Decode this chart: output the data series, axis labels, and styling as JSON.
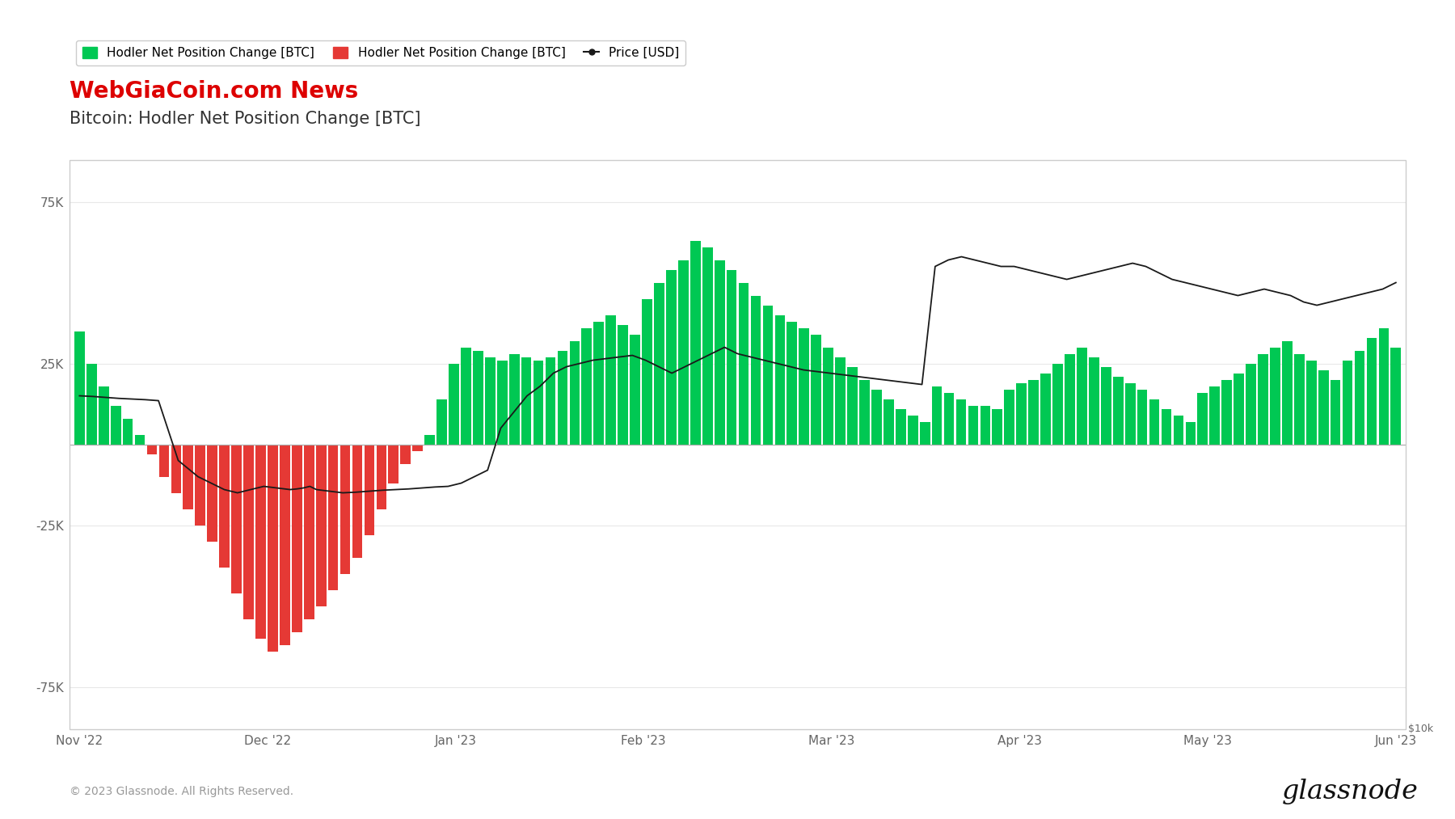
{
  "title": "Bitcoin: Hodler Net Position Change [BTC]",
  "watermark": "WebGiaCoin.com News",
  "footer_left": "© 2023 Glassnode. All Rights Reserved.",
  "footer_right": "glassnode",
  "yticks": [
    -75000,
    -25000,
    0,
    25000,
    75000
  ],
  "ytick_labels": [
    "-75K",
    "-25K",
    "",
    "25K",
    "75K"
  ],
  "ylabel_right": "$10k",
  "xtick_labels": [
    "Nov '22",
    "Dec '22",
    "Jan '23",
    "Feb '23",
    "Mar '23",
    "Apr '23",
    "May '23",
    "Jun '23"
  ],
  "bar_width": 0.85,
  "ylim": [
    -88000,
    88000
  ],
  "background_color": "#ffffff",
  "chart_bg": "#ffffff",
  "grid_color": "#e8e8e8",
  "bar_data": [
    35000,
    25000,
    18000,
    12000,
    8000,
    3000,
    -3000,
    -10000,
    -15000,
    -20000,
    -25000,
    -30000,
    -38000,
    -46000,
    -54000,
    -60000,
    -64000,
    -62000,
    -58000,
    -54000,
    -50000,
    -45000,
    -40000,
    -35000,
    -28000,
    -20000,
    -12000,
    -6000,
    -2000,
    3000,
    14000,
    25000,
    30000,
    29000,
    27000,
    26000,
    28000,
    27000,
    26000,
    27000,
    29000,
    32000,
    36000,
    38000,
    40000,
    37000,
    34000,
    45000,
    50000,
    54000,
    57000,
    63000,
    61000,
    57000,
    54000,
    50000,
    46000,
    43000,
    40000,
    38000,
    36000,
    34000,
    30000,
    27000,
    24000,
    20000,
    17000,
    14000,
    11000,
    9000,
    7000,
    18000,
    16000,
    14000,
    12000,
    12000,
    11000,
    17000,
    19000,
    20000,
    22000,
    25000,
    28000,
    30000,
    27000,
    24000,
    21000,
    19000,
    17000,
    14000,
    11000,
    9000,
    7000,
    16000,
    18000,
    20000,
    22000,
    25000,
    28000,
    30000,
    32000,
    28000,
    26000,
    23000,
    20000,
    26000,
    29000,
    33000,
    36000,
    30000
  ],
  "price_data_x_frac": [
    0.0,
    0.01,
    0.02,
    0.03,
    0.04,
    0.05,
    0.06,
    0.075,
    0.09,
    0.1,
    0.11,
    0.12,
    0.13,
    0.14,
    0.15,
    0.16,
    0.165,
    0.17,
    0.175,
    0.18,
    0.19,
    0.2,
    0.21,
    0.22,
    0.23,
    0.24,
    0.25,
    0.26,
    0.27,
    0.28,
    0.29,
    0.3,
    0.31,
    0.32,
    0.33,
    0.34,
    0.35,
    0.36,
    0.37,
    0.38,
    0.39,
    0.4,
    0.41,
    0.42,
    0.43,
    0.44,
    0.45,
    0.46,
    0.47,
    0.48,
    0.49,
    0.5,
    0.51,
    0.52,
    0.53,
    0.54,
    0.55,
    0.56,
    0.57,
    0.58,
    0.59,
    0.6,
    0.61,
    0.62,
    0.63,
    0.64,
    0.65,
    0.66,
    0.67,
    0.68,
    0.69,
    0.7,
    0.71,
    0.72,
    0.73,
    0.74,
    0.75,
    0.76,
    0.77,
    0.78,
    0.79,
    0.8,
    0.81,
    0.82,
    0.83,
    0.84,
    0.85,
    0.86,
    0.87,
    0.88,
    0.89,
    0.9,
    0.91,
    0.92,
    0.93,
    0.94,
    0.95,
    0.96,
    0.97,
    0.98,
    0.99,
    1.0
  ],
  "price_btc_scaled": [
    15000,
    14800,
    14500,
    14200,
    14000,
    13800,
    13500,
    -5000,
    -10000,
    -12000,
    -14000,
    -15000,
    -14000,
    -13000,
    -13500,
    -14000,
    -13800,
    -13500,
    -13000,
    -14000,
    -14500,
    -15000,
    -14800,
    -14500,
    -14200,
    -14000,
    -13800,
    -13500,
    -13200,
    -13000,
    -12000,
    -10000,
    -8000,
    5000,
    10000,
    15000,
    18000,
    22000,
    24000,
    25000,
    26000,
    26500,
    27000,
    27500,
    26000,
    24000,
    22000,
    24000,
    26000,
    28000,
    30000,
    28000,
    27000,
    26000,
    25000,
    24000,
    23000,
    22500,
    22000,
    21500,
    21000,
    20500,
    20000,
    19500,
    19000,
    18500,
    55000,
    57000,
    58000,
    57000,
    56000,
    55000,
    55000,
    54000,
    53000,
    52000,
    51000,
    52000,
    53000,
    54000,
    55000,
    56000,
    55000,
    53000,
    51000,
    50000,
    49000,
    48000,
    47000,
    46000,
    47000,
    48000,
    47000,
    46000,
    44000,
    43000,
    44000,
    45000,
    46000,
    47000,
    48000,
    50000
  ]
}
